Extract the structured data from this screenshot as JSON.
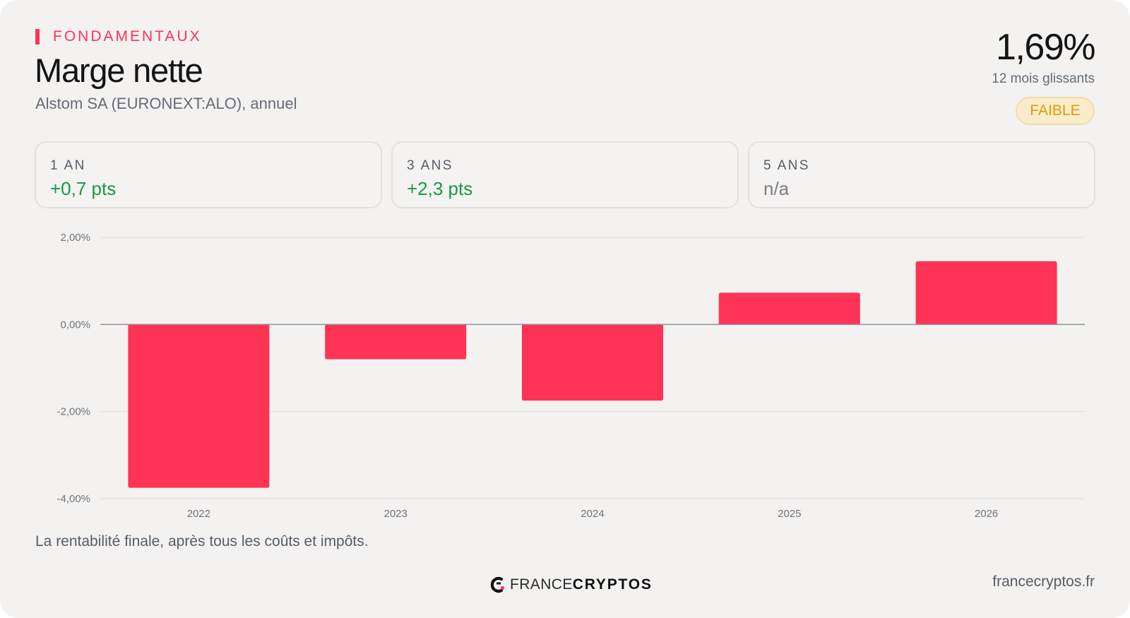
{
  "header": {
    "section_label": "FONDAMENTAUX",
    "title": "Marge nette",
    "subtitle": "Alstom SA (EURONEXT:ALO), annuel"
  },
  "headline": {
    "value": "1,69%",
    "period": "12 mois glissants",
    "rating": "FAIBLE"
  },
  "stats": [
    {
      "label": "1 AN",
      "value": "+0,7 pts",
      "trend": "positive"
    },
    {
      "label": "3 ANS",
      "value": "+2,3 pts",
      "trend": "positive"
    },
    {
      "label": "5 ANS",
      "value": "n/a",
      "trend": "neutral"
    }
  ],
  "chart_data": {
    "type": "bar",
    "categories": [
      "2022",
      "2023",
      "2024",
      "2025",
      "2026"
    ],
    "values": [
      -3.75,
      -0.8,
      -1.75,
      0.73,
      1.45
    ],
    "ylim": [
      -4,
      2
    ],
    "y_ticks": [
      2,
      0,
      -2,
      -4
    ],
    "y_tick_labels": [
      "2,00%",
      "0,00%",
      "-2,00%",
      "-4,00%"
    ],
    "title": "",
    "xlabel": "",
    "ylabel": "",
    "grid": true,
    "bar_color": "#ff3355"
  },
  "footnote": "La rentabilité finale, après tous les coûts et impôts.",
  "branding": {
    "brand_light": "FRANCE",
    "brand_bold": "CRYPTOS",
    "url": "francecryptos.fr"
  },
  "colors": {
    "accent": "#ff3355",
    "positive": "#179a46",
    "rating_text": "#dc9f07",
    "rating_bg": "#f8ecca"
  }
}
